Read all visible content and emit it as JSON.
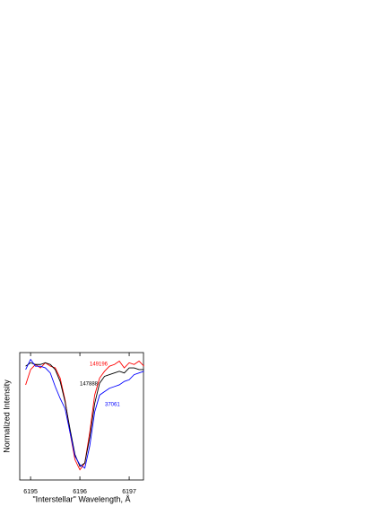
{
  "chart_data": {
    "type": "line",
    "xlabel": "\"Interstellar\"  Wavelength, Å",
    "ylabel": "Normalized Intensity",
    "x": [
      6194.9,
      6195.0,
      6195.1,
      6195.2,
      6195.3,
      6195.4,
      6195.5,
      6195.6,
      6195.7,
      6195.8,
      6195.9,
      6196.0,
      6196.1,
      6196.2,
      6196.3,
      6196.4,
      6196.5,
      6196.6,
      6196.7,
      6196.8,
      6196.9,
      6197.0,
      6197.1,
      6197.2,
      6197.3
    ],
    "series": [
      {
        "name": "149196",
        "color": "#ff0000",
        "values": [
          0.86,
          0.95,
          0.98,
          0.96,
          0.99,
          0.97,
          0.96,
          0.9,
          0.77,
          0.58,
          0.42,
          0.36,
          0.4,
          0.58,
          0.8,
          0.9,
          0.94,
          0.97,
          0.98,
          1.0,
          0.96,
          0.99,
          0.98,
          1.0,
          0.97
        ]
      },
      {
        "name": "147888",
        "color": "#000000",
        "values": [
          0.97,
          0.99,
          0.98,
          0.98,
          0.99,
          0.98,
          0.95,
          0.88,
          0.76,
          0.6,
          0.45,
          0.38,
          0.4,
          0.55,
          0.75,
          0.87,
          0.91,
          0.92,
          0.93,
          0.94,
          0.93,
          0.96,
          0.96,
          0.95,
          0.95
        ]
      },
      {
        "name": "37061",
        "color": "#0000ff",
        "values": [
          0.95,
          1.01,
          0.97,
          0.97,
          0.96,
          0.93,
          0.85,
          0.78,
          0.72,
          0.58,
          0.44,
          0.39,
          0.37,
          0.5,
          0.7,
          0.8,
          0.82,
          0.84,
          0.85,
          0.86,
          0.88,
          0.89,
          0.92,
          0.93,
          0.94
        ]
      }
    ],
    "xlim": [
      6194.78,
      6197.29
    ],
    "xticks": [
      6195,
      6196,
      6197
    ],
    "ylim": [
      0.3,
      1.05
    ]
  }
}
